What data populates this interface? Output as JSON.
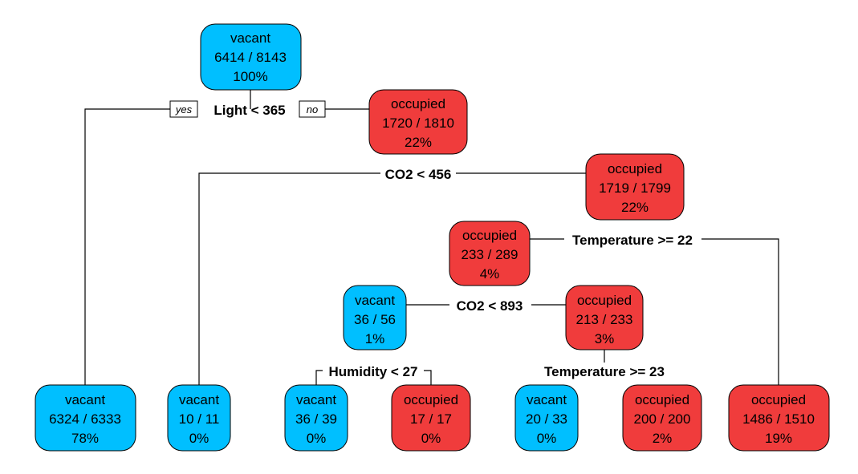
{
  "colors": {
    "vacant": "#00BFFF",
    "occupied": "#F03C3C"
  },
  "branch_labels": {
    "yes": "yes",
    "no": "no"
  },
  "nodes": {
    "n1": {
      "cls": "vacant",
      "label": "vacant",
      "counts": "6414 / 8143",
      "pct": "100%"
    },
    "n3": {
      "cls": "occupied",
      "label": "occupied",
      "counts": "1720 / 1810",
      "pct": "22%"
    },
    "n7": {
      "cls": "occupied",
      "label": "occupied",
      "counts": "1719 / 1799",
      "pct": "22%"
    },
    "n14": {
      "cls": "occupied",
      "label": "occupied",
      "counts": "233 / 289",
      "pct": "4%"
    },
    "n28": {
      "cls": "vacant",
      "label": "vacant",
      "counts": "36 / 56",
      "pct": "1%"
    },
    "n29": {
      "cls": "occupied",
      "label": "occupied",
      "counts": "213 / 233",
      "pct": "3%"
    },
    "l1": {
      "cls": "vacant",
      "label": "vacant",
      "counts": "6324 / 6333",
      "pct": "78%"
    },
    "l2": {
      "cls": "vacant",
      "label": "vacant",
      "counts": "10 / 11",
      "pct": "0%"
    },
    "l3": {
      "cls": "vacant",
      "label": "vacant",
      "counts": "36 / 39",
      "pct": "0%"
    },
    "l4": {
      "cls": "occupied",
      "label": "occupied",
      "counts": "17 / 17",
      "pct": "0%"
    },
    "l5": {
      "cls": "vacant",
      "label": "vacant",
      "counts": "20 / 33",
      "pct": "0%"
    },
    "l6": {
      "cls": "occupied",
      "label": "occupied",
      "counts": "200 / 200",
      "pct": "2%"
    },
    "l7": {
      "cls": "occupied",
      "label": "occupied",
      "counts": "1486 / 1510",
      "pct": "19%"
    }
  },
  "splits": {
    "s1": "Light < 365",
    "s3": "CO2 < 456",
    "s7": "Temperature >= 22",
    "s14": "CO2 < 893",
    "s28": "Humidity < 27",
    "s29": "Temperature >= 23"
  }
}
